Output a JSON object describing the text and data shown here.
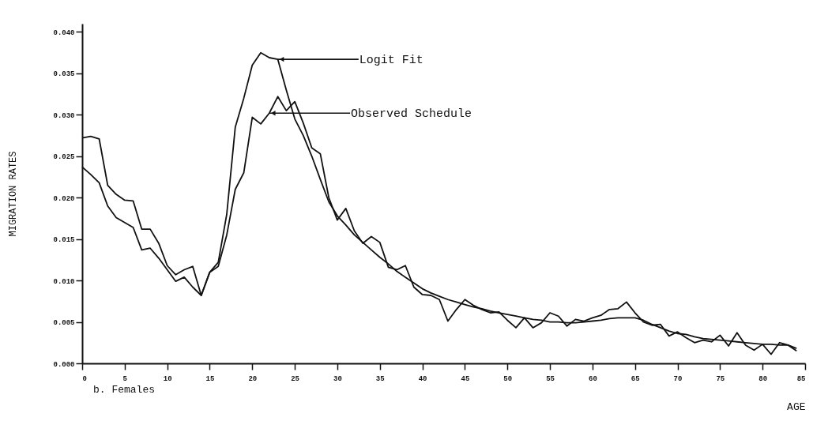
{
  "chart_data": {
    "type": "line",
    "title": "b. Females",
    "xlabel": "AGE",
    "ylabel": "MIGRATION RATES",
    "x": [
      0,
      1,
      2,
      3,
      4,
      5,
      6,
      7,
      8,
      9,
      10,
      11,
      12,
      13,
      14,
      15,
      16,
      17,
      18,
      19,
      20,
      21,
      22,
      23,
      24,
      25,
      26,
      27,
      28,
      29,
      30,
      31,
      32,
      33,
      34,
      35,
      36,
      37,
      38,
      39,
      40,
      41,
      42,
      43,
      44,
      45,
      46,
      47,
      48,
      49,
      50,
      51,
      52,
      53,
      54,
      55,
      56,
      57,
      58,
      59,
      60,
      61,
      62,
      63,
      64,
      65,
      66,
      67,
      68,
      69,
      70,
      71,
      72,
      73,
      74,
      75,
      76,
      77,
      78,
      79,
      80,
      81,
      82,
      83,
      84
    ],
    "series": [
      {
        "color": "#111111",
        "values": [
          0.0272,
          0.0274,
          0.0271,
          0.0215,
          0.0204,
          0.0197,
          0.0196,
          0.0162,
          0.0162,
          0.0145,
          0.0118,
          0.0107,
          0.0113,
          0.0117,
          0.0082,
          0.011,
          0.0122,
          0.018,
          0.0285,
          0.032,
          0.036,
          0.0375,
          0.0369,
          0.0367,
          0.033,
          0.0295,
          0.0275,
          0.025,
          0.0222,
          0.0195,
          0.0178,
          0.0167,
          0.0155,
          0.0146,
          0.0137,
          0.0128,
          0.012,
          0.0111,
          0.0104,
          0.0097,
          0.009,
          0.0085,
          0.0081,
          0.0077,
          0.0074,
          0.0071,
          0.0068,
          0.0066,
          0.0063,
          0.0061,
          0.0059,
          0.0057,
          0.0055,
          0.0053,
          0.0052,
          0.005,
          0.005,
          0.0049,
          0.0049,
          0.005,
          0.0051,
          0.0052,
          0.0054,
          0.0055,
          0.0055,
          0.0055,
          0.0052,
          0.0047,
          0.0043,
          0.0039,
          0.0036,
          0.0035,
          0.0032,
          0.003,
          0.0029,
          0.0028,
          0.0027,
          0.0026,
          0.0025,
          0.0024,
          0.0023,
          0.0023,
          0.0022,
          0.0022,
          0.0018
        ]
      },
      {
        "color": "#111111",
        "values": [
          0.0237,
          0.0228,
          0.0218,
          0.019,
          0.0176,
          0.017,
          0.0164,
          0.0137,
          0.0139,
          0.0127,
          0.0113,
          0.0099,
          0.0104,
          0.0092,
          0.0082,
          0.011,
          0.0117,
          0.0155,
          0.021,
          0.023,
          0.0297,
          0.0289,
          0.0302,
          0.0322,
          0.0305,
          0.0316,
          0.029,
          0.026,
          0.0253,
          0.02,
          0.0173,
          0.0187,
          0.016,
          0.0145,
          0.0153,
          0.0146,
          0.0116,
          0.0113,
          0.0118,
          0.0092,
          0.0083,
          0.0082,
          0.0077,
          0.0051,
          0.0065,
          0.0077,
          0.007,
          0.0065,
          0.0061,
          0.0062,
          0.0052,
          0.0043,
          0.0055,
          0.0043,
          0.0049,
          0.0061,
          0.0057,
          0.0045,
          0.0053,
          0.0051,
          0.0055,
          0.0058,
          0.0065,
          0.0066,
          0.0074,
          0.0061,
          0.005,
          0.0046,
          0.0047,
          0.0033,
          0.0038,
          0.0031,
          0.0025,
          0.0028,
          0.0026,
          0.0034,
          0.0021,
          0.0037,
          0.0022,
          0.0016,
          0.0023,
          0.0011,
          0.0025,
          0.0022,
          0.0015
        ]
      }
    ],
    "annotations": [
      {
        "text": "Logit Fit",
        "x": 23,
        "y": 0.0367
      },
      {
        "text": "Observed Schedule",
        "x": 22,
        "y": 0.0302
      }
    ],
    "xlim": [
      0,
      85
    ],
    "xticks": [
      0,
      5,
      10,
      15,
      20,
      25,
      30,
      35,
      40,
      45,
      50,
      55,
      60,
      65,
      70,
      75,
      80,
      85
    ],
    "ylim": [
      0,
      0.041
    ],
    "yticks": [
      {
        "value": 0,
        "label": "0.000"
      },
      0.005,
      {
        "value": 0.01,
        "label": "0.010"
      },
      0.015,
      {
        "value": 0.02,
        "label": "0.020"
      },
      0.025,
      {
        "value": 0.03,
        "label": "0.030"
      },
      0.035,
      {
        "value": 0.04,
        "label": "0.040"
      }
    ],
    "line_style": "solid",
    "marker": "none",
    "grid": false,
    "legend": false
  }
}
